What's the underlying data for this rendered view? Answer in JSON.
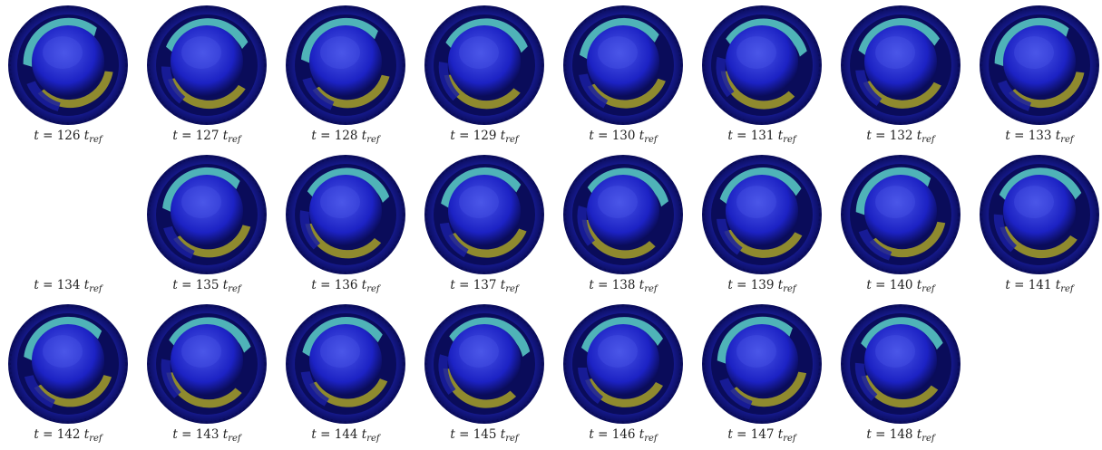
{
  "figure": {
    "frames": [
      {
        "t": "126",
        "ref": "ref",
        "shown": true
      },
      {
        "t": "127",
        "ref": "ref",
        "shown": true
      },
      {
        "t": "128",
        "ref": "ref",
        "shown": true
      },
      {
        "t": "129",
        "ref": "ref",
        "shown": true
      },
      {
        "t": "130",
        "ref": "ref",
        "shown": true
      },
      {
        "t": "131",
        "ref": "ref",
        "shown": true
      },
      {
        "t": "132",
        "ref": "ref",
        "shown": true
      },
      {
        "t": "133",
        "ref": "ref",
        "shown": true
      },
      {
        "t": "134",
        "ref": "ref",
        "shown": false
      },
      {
        "t": "135",
        "ref": "ref",
        "shown": true
      },
      {
        "t": "136",
        "ref": "ref",
        "shown": true
      },
      {
        "t": "137",
        "ref": "ref",
        "shown": true
      },
      {
        "t": "138",
        "ref": "ref",
        "shown": true
      },
      {
        "t": "139",
        "ref": "ref",
        "shown": true
      },
      {
        "t": "140",
        "ref": "ref",
        "shown": true
      },
      {
        "t": "141",
        "ref": "ref",
        "shown": true
      },
      {
        "t": "142",
        "ref": "ref",
        "shown": true
      },
      {
        "t": "143",
        "ref": "ref",
        "shown": true
      },
      {
        "t": "144",
        "ref": "ref",
        "shown": true
      },
      {
        "t": "145",
        "ref": "ref",
        "shown": true
      },
      {
        "t": "146",
        "ref": "ref",
        "shown": true
      },
      {
        "t": "147",
        "ref": "ref",
        "shown": true
      },
      {
        "t": "148",
        "ref": "ref",
        "shown": true
      }
    ],
    "colors": {
      "outer_ring": "#1a1fa0",
      "rim_dark": "#0a0c5a",
      "cyan_region": "#4fb3b8",
      "olive_region": "#8f8a2e",
      "inner_disk": "#1c22c4",
      "inner_highlight": "#4b57e8"
    }
  }
}
